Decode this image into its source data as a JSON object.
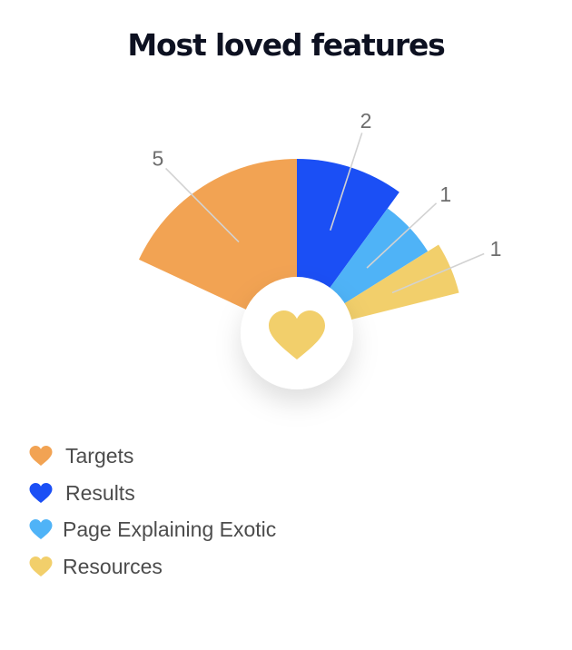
{
  "title": "Most loved features",
  "chart_data": {
    "type": "pie",
    "variant": "half-fan",
    "categories": [
      "Targets",
      "Results",
      "Page Explaining Exotic",
      "Resources"
    ],
    "values": [
      5,
      2,
      1,
      1
    ],
    "colors": [
      "#f2a353",
      "#1b4ff5",
      "#4fb3f7",
      "#f2cf6b"
    ],
    "center_icon": "heart-icon",
    "center_icon_color": "#f2cf6b",
    "legend_placement": "bottom-left"
  },
  "legend": {
    "items": [
      {
        "label": "Targets",
        "color": "#f2a353",
        "icon": "heart-icon"
      },
      {
        "label": "Results",
        "color": "#1b4ff5",
        "icon": "heart-icon"
      },
      {
        "label": "Page Explaining Exotic",
        "color": "#4fb3f7",
        "icon": "heart-icon"
      },
      {
        "label": "Resources",
        "color": "#f2cf6b",
        "icon": "heart-icon"
      }
    ]
  }
}
